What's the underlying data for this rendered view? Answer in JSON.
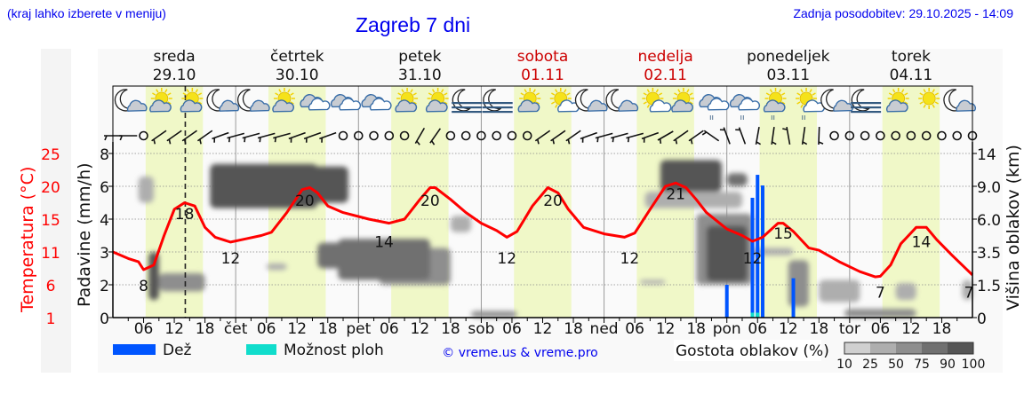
{
  "header": {
    "hint": "(kraj lahko izberete v meniju)",
    "title": "Zagreb 7 dni",
    "updated": "Zadnja posodobitev: 29.10.2025 - 14:09"
  },
  "days": [
    {
      "name": "sreda",
      "date": "29.10",
      "abbr": "",
      "weekend": false
    },
    {
      "name": "četrtek",
      "date": "30.10",
      "abbr": "čet",
      "weekend": false
    },
    {
      "name": "petek",
      "date": "31.10",
      "abbr": "pet",
      "weekend": false
    },
    {
      "name": "sobota",
      "date": "01.11",
      "abbr": "sob",
      "weekend": true
    },
    {
      "name": "nedelja",
      "date": "02.11",
      "abbr": "ned",
      "weekend": true
    },
    {
      "name": "ponedeljek",
      "date": "03.11",
      "abbr": "pon",
      "weekend": false
    },
    {
      "name": "torek",
      "date": "04.11",
      "abbr": "tor",
      "weekend": false
    }
  ],
  "hour_labels": [
    "06",
    "12",
    "18"
  ],
  "legend": {
    "rain": "Dež",
    "showers": "Možnost ploh",
    "copyright": "© vreme.us & vreme.pro",
    "cloud_density": "Gostota oblakov (%)",
    "density_ticks": [
      "10",
      "25",
      "50",
      "75",
      "90",
      "100"
    ]
  },
  "colors": {
    "temperature": "#ff0000",
    "rain": "#0055ff",
    "showers": "#11ddcc",
    "daylight": "#f0f8c8",
    "weekend": "#cc0000",
    "link": "#0000ee",
    "density": [
      "#d0d0d0",
      "#aeaeae",
      "#8e8e8e",
      "#707070",
      "#555555"
    ]
  },
  "chart_data": {
    "type": "line",
    "x_unit": "hours from 29.10 00:00",
    "xlim": [
      0,
      168
    ],
    "current_time_hour": 14.15,
    "axes": {
      "temperature": {
        "label": "Temperatura (°C)",
        "ticks": [
          "1",
          "6",
          "11",
          "15",
          "20",
          "25"
        ],
        "values": [
          1,
          6,
          11,
          15,
          20,
          25
        ]
      },
      "precipitation": {
        "label": "Padavine (mm/h)",
        "ticks": [
          "0",
          "2",
          "3",
          "4",
          "6",
          "8"
        ],
        "values": [
          0,
          2,
          3,
          4,
          6,
          8
        ]
      },
      "cloud_height": {
        "label": "Višina oblakov (km)",
        "ticks": [
          "0",
          "1.5",
          "3.5",
          "6.0",
          "9.0",
          "14"
        ],
        "values": [
          0,
          1.5,
          3.5,
          6,
          9,
          14
        ]
      }
    },
    "grid": true,
    "temperature": [
      [
        0,
        11
      ],
      [
        3,
        10
      ],
      [
        5,
        9.5
      ],
      [
        6,
        8.3
      ],
      [
        8,
        9
      ],
      [
        10,
        13
      ],
      [
        12,
        16.5
      ],
      [
        14,
        17.5
      ],
      [
        16,
        17
      ],
      [
        18,
        14
      ],
      [
        20,
        12.8
      ],
      [
        23,
        12.2
      ],
      [
        26,
        12.6
      ],
      [
        29,
        13
      ],
      [
        31,
        13.4
      ],
      [
        34,
        16
      ],
      [
        37,
        19.5
      ],
      [
        38.5,
        19.8
      ],
      [
        40,
        19
      ],
      [
        42,
        17
      ],
      [
        45,
        16
      ],
      [
        50,
        15
      ],
      [
        54,
        14.5
      ],
      [
        57,
        15
      ],
      [
        60,
        18
      ],
      [
        62,
        19.8
      ],
      [
        63,
        19.8
      ],
      [
        66,
        18
      ],
      [
        69,
        16
      ],
      [
        72,
        14.5
      ],
      [
        75,
        13.6
      ],
      [
        77,
        12.8
      ],
      [
        79,
        13.5
      ],
      [
        82,
        17
      ],
      [
        85,
        19.8
      ],
      [
        87,
        19
      ],
      [
        89,
        16.5
      ],
      [
        92,
        14
      ],
      [
        96,
        13.2
      ],
      [
        100,
        12.8
      ],
      [
        102,
        13.3
      ],
      [
        105,
        16.5
      ],
      [
        108,
        20
      ],
      [
        110,
        20.5
      ],
      [
        112,
        19.8
      ],
      [
        114,
        18
      ],
      [
        116,
        16
      ],
      [
        120,
        13.8
      ],
      [
        123,
        13
      ],
      [
        125,
        12.3
      ],
      [
        127,
        12.8
      ],
      [
        130,
        14.5
      ],
      [
        131,
        14.5
      ],
      [
        133,
        13.5
      ],
      [
        136,
        11.5
      ],
      [
        138,
        11.2
      ],
      [
        142,
        9.5
      ],
      [
        146,
        8
      ],
      [
        149,
        7.2
      ],
      [
        150,
        7.3
      ],
      [
        152,
        9
      ],
      [
        154,
        12
      ],
      [
        157,
        14
      ],
      [
        159,
        14
      ],
      [
        161,
        12.5
      ],
      [
        164,
        10.5
      ],
      [
        166,
        9
      ],
      [
        168,
        7.5
      ]
    ],
    "temperature_labels": [
      [
        6,
        "8"
      ],
      [
        14,
        "18"
      ],
      [
        23,
        "12"
      ],
      [
        37.5,
        "20"
      ],
      [
        53,
        "14"
      ],
      [
        62,
        "20"
      ],
      [
        77,
        "12"
      ],
      [
        86,
        "20"
      ],
      [
        101,
        "12"
      ],
      [
        110,
        "21"
      ],
      [
        125,
        "12"
      ],
      [
        131,
        "15"
      ],
      [
        150,
        "7"
      ],
      [
        158,
        "14"
      ],
      [
        167.5,
        "7"
      ]
    ],
    "rain": [
      [
        120,
        2
      ],
      [
        125,
        5.3
      ],
      [
        126,
        6.7
      ],
      [
        127,
        6.05
      ],
      [
        133,
        2.2
      ]
    ],
    "showers": [
      [
        125,
        0.3
      ],
      [
        126,
        0.3
      ]
    ],
    "clouds": [
      {
        "h": [
          19,
          40
        ],
        "km": [
          7,
          12.4
        ],
        "density": 90
      },
      {
        "h": [
          38,
          46
        ],
        "km": [
          7.5,
          12
        ],
        "density": 90
      },
      {
        "h": [
          40,
          50
        ],
        "km": [
          2.5,
          4.2
        ],
        "density": 75
      },
      {
        "h": [
          44,
          62
        ],
        "km": [
          1.8,
          4.5
        ],
        "density": 75
      },
      {
        "h": [
          52,
          66
        ],
        "km": [
          1.5,
          3.8
        ],
        "density": 50
      },
      {
        "h": [
          66,
          70
        ],
        "km": [
          5,
          6.3
        ],
        "density": 25
      },
      {
        "h": [
          5,
          8
        ],
        "km": [
          7.5,
          10.5
        ],
        "density": 25
      },
      {
        "h": [
          7,
          9
        ],
        "km": [
          0.8,
          3.5
        ],
        "density": 90
      },
      {
        "h": [
          9,
          18
        ],
        "km": [
          1.2,
          2.2
        ],
        "density": 50
      },
      {
        "h": [
          30,
          34
        ],
        "km": [
          2.4,
          2.8
        ],
        "density": 25
      },
      {
        "h": [
          107,
          119
        ],
        "km": [
          8.5,
          13
        ],
        "density": 90
      },
      {
        "h": [
          104,
          123
        ],
        "km": [
          7,
          8.5
        ],
        "density": 25
      },
      {
        "h": [
          116,
          124
        ],
        "km": [
          1.7,
          5.5
        ],
        "density": 90
      },
      {
        "h": [
          114,
          125
        ],
        "km": [
          1.5,
          6.5
        ],
        "density": 50
      },
      {
        "h": [
          120,
          124
        ],
        "km": [
          9,
          11
        ],
        "density": 75
      },
      {
        "h": [
          125,
          133
        ],
        "km": [
          3.3,
          3.8
        ],
        "density": 25
      },
      {
        "h": [
          132,
          136
        ],
        "km": [
          0.5,
          3
        ],
        "density": 50
      },
      {
        "h": [
          103,
          108
        ],
        "km": [
          1.6,
          1.8
        ],
        "density": 25
      },
      {
        "h": [
          70,
          79
        ],
        "km": [
          0,
          0.3
        ],
        "density": 50
      },
      {
        "h": [
          143,
          157
        ],
        "km": [
          0,
          0.4
        ],
        "density": 50
      },
      {
        "h": [
          138,
          146
        ],
        "km": [
          0.7,
          1.8
        ],
        "density": 25
      },
      {
        "h": [
          153,
          157
        ],
        "km": [
          0.8,
          1.6
        ],
        "density": 25
      },
      {
        "h": [
          166,
          168
        ],
        "km": [
          0.8,
          1.8
        ],
        "density": 25
      }
    ],
    "weather_icons": [
      "moon-cloud",
      "sun-cloud",
      "sun-cloud",
      "moon-cloud",
      "moon-cloud",
      "sun-cloud",
      "cloud-white",
      "cloud-grey",
      "cloud-grey",
      "sun-cloud",
      "sun-cloud",
      "moon-fog",
      "moon-fog",
      "sun-cloud",
      "sun-cloud-white",
      "moon-cloud",
      "moon-cloud",
      "sun-cloud-white",
      "sun-cloud",
      "cloud-rain",
      "cloud-rain",
      "sun-cloud-rain",
      "sun-cloud-white-rain",
      "moon-cloud",
      "moon-fog",
      "sun-cloud",
      "sun",
      "moon-cloud"
    ],
    "wind": [
      0,
      0,
      null,
      -35,
      -35,
      -35,
      -35,
      -20,
      -15,
      -15,
      -15,
      -15,
      -20,
      -20,
      -20,
      null,
      null,
      null,
      null,
      null,
      -60,
      -55,
      null,
      null,
      null,
      null,
      null,
      null,
      -35,
      -35,
      -35,
      -20,
      -15,
      -15,
      -15,
      -20,
      -30,
      -35,
      -35,
      35,
      70,
      70,
      -80,
      -82,
      80,
      -82,
      -88,
      null,
      null,
      null,
      null,
      null,
      null,
      null,
      null,
      null,
      null
    ]
  }
}
